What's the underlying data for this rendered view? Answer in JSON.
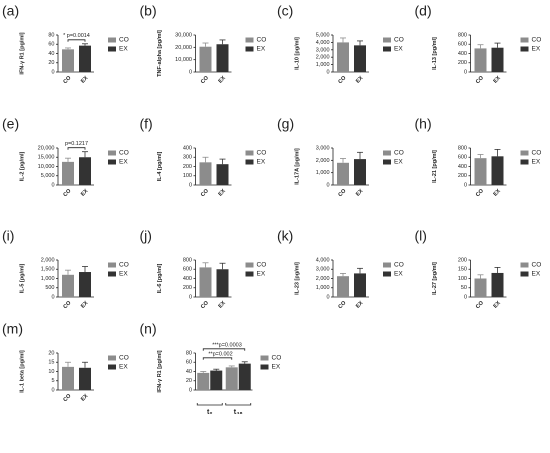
{
  "chart_data": [
    {
      "type": "bar",
      "panel": "(a)",
      "y_label": "IFN-γ R1 [pg/ml]",
      "categories": [
        "CO",
        "EX"
      ],
      "values": [
        49,
        57
      ],
      "errors": [
        3,
        4
      ],
      "colors": [
        "#8c8c8c",
        "#333333"
      ],
      "legend": [
        "CO",
        "EX"
      ],
      "ylim": [
        0,
        80
      ],
      "yticks": [
        0,
        20,
        40,
        60,
        80
      ],
      "annotations": [
        "* p=0.0014"
      ]
    },
    {
      "type": "bar",
      "panel": "(b)",
      "y_label": "TNF-alpha [pg/ml]",
      "categories": [
        "CO",
        "EX"
      ],
      "values": [
        20500,
        22500
      ],
      "errors": [
        3000,
        3500
      ],
      "colors": [
        "#8c8c8c",
        "#333333"
      ],
      "legend": [
        "CO",
        "EX"
      ],
      "ylim": [
        0,
        30000
      ],
      "yticks": [
        0,
        {
          "value": 10000,
          "label": "10,000"
        },
        {
          "value": 20000,
          "label": "20,000"
        },
        {
          "value": 30000,
          "label": "30,000"
        }
      ]
    },
    {
      "type": "bar",
      "panel": "(c)",
      "y_label": "IL-10 [pg/ml]",
      "categories": [
        "CO",
        "EX"
      ],
      "values": [
        4000,
        3600
      ],
      "errors": [
        600,
        600
      ],
      "colors": [
        "#8c8c8c",
        "#333333"
      ],
      "legend": [
        "CO",
        "EX"
      ],
      "ylim": [
        0,
        5000
      ],
      "yticks": [
        0,
        {
          "value": 1000,
          "label": "1,000"
        },
        {
          "value": 2000,
          "label": "2,000"
        },
        {
          "value": 3000,
          "label": "3,000"
        },
        {
          "value": 4000,
          "label": "4,000"
        },
        {
          "value": 5000,
          "label": "5,000"
        }
      ]
    },
    {
      "type": "bar",
      "panel": "(d)",
      "y_label": "IL-13 [pg/ml]",
      "categories": [
        "CO",
        "EX"
      ],
      "values": [
        510,
        525
      ],
      "errors": [
        80,
        100
      ],
      "colors": [
        "#8c8c8c",
        "#333333"
      ],
      "legend": [
        "CO",
        "EX"
      ],
      "ylim": [
        0,
        800
      ],
      "yticks": [
        0,
        200,
        400,
        600,
        800
      ]
    },
    {
      "type": "bar",
      "panel": "(e)",
      "y_label": "IL-2 [pg/ml]",
      "categories": [
        "CO",
        "EX"
      ],
      "values": [
        12500,
        15000
      ],
      "errors": [
        2000,
        3000
      ],
      "colors": [
        "#8c8c8c",
        "#333333"
      ],
      "legend": [
        "CO",
        "EX"
      ],
      "ylim": [
        0,
        20000
      ],
      "yticks": [
        0,
        {
          "value": 5000,
          "label": "5,000"
        },
        {
          "value": 10000,
          "label": "10,000"
        },
        {
          "value": 15000,
          "label": "15,000"
        },
        {
          "value": 20000,
          "label": "20,000"
        }
      ],
      "annotations": [
        "p=0.1217"
      ]
    },
    {
      "type": "bar",
      "panel": "(f)",
      "y_label": "IL-4 [pg/ml]",
      "categories": [
        "CO",
        "EX"
      ],
      "values": [
        245,
        225
      ],
      "errors": [
        55,
        55
      ],
      "colors": [
        "#8c8c8c",
        "#333333"
      ],
      "legend": [
        "CO",
        "EX"
      ],
      "ylim": [
        0,
        400
      ],
      "yticks": [
        0,
        100,
        200,
        300,
        400
      ]
    },
    {
      "type": "bar",
      "panel": "(g)",
      "y_label": "IL-17A [pg/ml]",
      "categories": [
        "CO",
        "EX"
      ],
      "values": [
        1800,
        2100
      ],
      "errors": [
        350,
        550
      ],
      "colors": [
        "#8c8c8c",
        "#333333"
      ],
      "legend": [
        "CO",
        "EX"
      ],
      "ylim": [
        0,
        3000
      ],
      "yticks": [
        0,
        {
          "value": 1000,
          "label": "1,000"
        },
        {
          "value": 2000,
          "label": "2,000"
        },
        {
          "value": 3000,
          "label": "3,000"
        }
      ]
    },
    {
      "type": "bar",
      "panel": "(h)",
      "y_label": "IL-21 [pg/ml]",
      "categories": [
        "CO",
        "EX"
      ],
      "values": [
        580,
        620
      ],
      "errors": [
        80,
        150
      ],
      "colors": [
        "#8c8c8c",
        "#333333"
      ],
      "legend": [
        "CO",
        "EX"
      ],
      "ylim": [
        0,
        800
      ],
      "yticks": [
        0,
        200,
        400,
        600,
        800
      ]
    },
    {
      "type": "bar",
      "panel": "(i)",
      "y_label": "IL-5 [pg/ml]",
      "categories": [
        "CO",
        "EX"
      ],
      "values": [
        1200,
        1350
      ],
      "errors": [
        250,
        300
      ],
      "colors": [
        "#8c8c8c",
        "#333333"
      ],
      "legend": [
        "CO",
        "EX"
      ],
      "ylim": [
        0,
        2000
      ],
      "yticks": [
        0,
        500,
        {
          "value": 1000,
          "label": "1,000"
        },
        {
          "value": 1500,
          "label": "1,500"
        },
        {
          "value": 2000,
          "label": "2,000"
        }
      ]
    },
    {
      "type": "bar",
      "panel": "(j)",
      "y_label": "IL-6 [pg/ml]",
      "categories": [
        "CO",
        "EX"
      ],
      "values": [
        640,
        600
      ],
      "errors": [
        100,
        130
      ],
      "colors": [
        "#8c8c8c",
        "#333333"
      ],
      "legend": [
        "CO",
        "EX"
      ],
      "ylim": [
        0,
        800
      ],
      "yticks": [
        0,
        200,
        400,
        600,
        800
      ]
    },
    {
      "type": "bar",
      "panel": "(k)",
      "y_label": "IL-23 [pg/ml]",
      "categories": [
        "CO",
        "EX"
      ],
      "values": [
        2250,
        2550
      ],
      "errors": [
        300,
        550
      ],
      "colors": [
        "#8c8c8c",
        "#333333"
      ],
      "legend": [
        "CO",
        "EX"
      ],
      "ylim": [
        0,
        4000
      ],
      "yticks": [
        0,
        {
          "value": 1000,
          "label": "1,000"
        },
        {
          "value": 2000,
          "label": "2,000"
        },
        {
          "value": 3000,
          "label": "3,000"
        },
        {
          "value": 4000,
          "label": "4,000"
        }
      ]
    },
    {
      "type": "bar",
      "panel": "(l)",
      "y_label": "IL-27 [pg/ml]",
      "categories": [
        "CO",
        "EX"
      ],
      "values": [
        100,
        130
      ],
      "errors": [
        20,
        30
      ],
      "colors": [
        "#8c8c8c",
        "#333333"
      ],
      "legend": [
        "CO",
        "EX"
      ],
      "ylim": [
        0,
        200
      ],
      "yticks": [
        0,
        50,
        100,
        150,
        200
      ]
    },
    {
      "type": "bar",
      "panel": "(m)",
      "y_label": "IL-1 beta [pg/ml]",
      "categories": [
        "CO",
        "EX"
      ],
      "values": [
        12.5,
        12
      ],
      "errors": [
        2.5,
        3
      ],
      "colors": [
        "#8c8c8c",
        "#333333"
      ],
      "legend": [
        "CO",
        "EX"
      ],
      "ylim": [
        0,
        20
      ],
      "yticks": [
        0,
        5,
        10,
        15,
        20
      ]
    },
    {
      "type": "grouped",
      "panel": "(n)",
      "y_label": "IFN-γ R1 [pg/ml]",
      "categories": [
        "t₀",
        "t₄₈"
      ],
      "series": [
        {
          "name": "CO",
          "color": "#8c8c8c",
          "values": [
            37,
            49
          ],
          "errors": [
            3,
            3
          ]
        },
        {
          "name": "EX",
          "color": "#333333",
          "values": [
            42,
            57
          ],
          "errors": [
            3,
            4
          ]
        }
      ],
      "ylim": [
        0,
        80
      ],
      "yticks": [
        0,
        20,
        40,
        60,
        80
      ],
      "annotations": [
        "**p=0.002",
        "***p=0.0003"
      ]
    }
  ]
}
